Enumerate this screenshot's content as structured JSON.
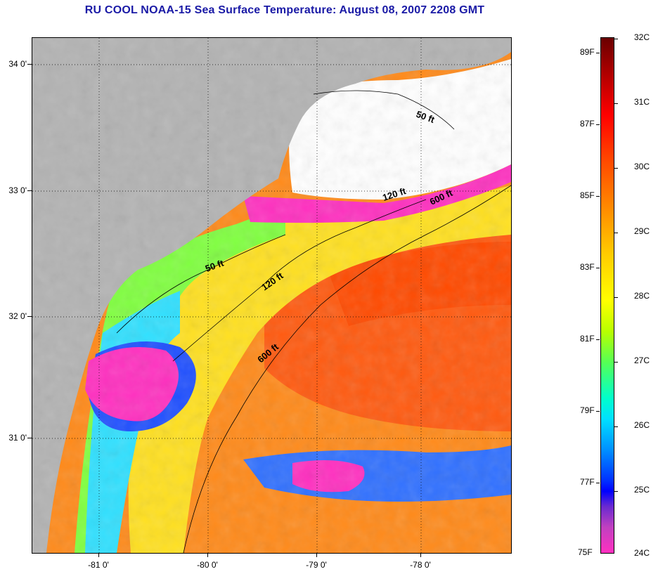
{
  "title": "RU COOL  NOAA-15  Sea Surface Temperature:  August 08, 2007 2208 GMT",
  "lat_labels": [
    "34 0'",
    "33 0'",
    "32 0'",
    "31 0'"
  ],
  "lon_labels": [
    "-81 0'",
    "-80 0'",
    "-79 0'",
    "-78 0'"
  ],
  "contours": [
    "50 ft",
    "120 ft",
    "600 ft",
    "50 ft",
    "120 ft",
    "600 ft"
  ],
  "colorbar": {
    "fahrenheit": [
      "89F",
      "87F",
      "85F",
      "83F",
      "81F",
      "79F",
      "77F",
      "75F"
    ],
    "celsius": [
      "32C",
      "31C",
      "30C",
      "29C",
      "28C",
      "27C",
      "26C",
      "25C",
      "24C"
    ]
  },
  "colors": {
    "land": "#b3b3b3",
    "cloud": "#ffffff",
    "title": "#1a1aa6"
  }
}
